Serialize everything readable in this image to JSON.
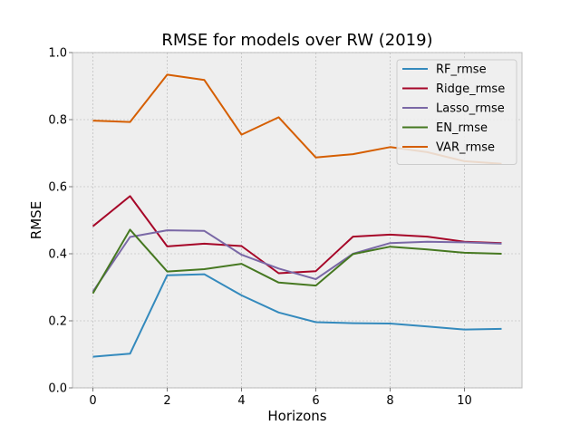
{
  "chart_data": {
    "type": "line",
    "title": "RMSE for models over RW (2019)",
    "xlabel": "Horizons",
    "ylabel": "RMSE",
    "x": [
      0,
      1,
      2,
      3,
      4,
      5,
      6,
      7,
      8,
      9,
      10,
      11
    ],
    "xlim": [
      -0.55,
      11.55
    ],
    "ylim": [
      0.0,
      1.0
    ],
    "xticks": [
      0,
      2,
      4,
      6,
      8,
      10
    ],
    "yticks": [
      0.0,
      0.2,
      0.4,
      0.6,
      0.8,
      1.0
    ],
    "xtick_labels": [
      "0",
      "2",
      "4",
      "6",
      "8",
      "10"
    ],
    "ytick_labels": [
      "0.0",
      "0.2",
      "0.4",
      "0.6",
      "0.8",
      "1.0"
    ],
    "grid": true,
    "legend_position": "top-right",
    "series": [
      {
        "name": "RF_rmse",
        "color": "#348ABD",
        "values": [
          0.093,
          0.102,
          0.336,
          0.339,
          0.276,
          0.225,
          0.196,
          0.193,
          0.192,
          0.183,
          0.174,
          0.176
        ]
      },
      {
        "name": "Ridge_rmse",
        "color": "#A60628",
        "values": [
          0.482,
          0.572,
          0.422,
          0.43,
          0.423,
          0.342,
          0.348,
          0.451,
          0.457,
          0.451,
          0.436,
          0.432
        ]
      },
      {
        "name": "Lasso_rmse",
        "color": "#7A68A6",
        "values": [
          0.287,
          0.45,
          0.47,
          0.468,
          0.397,
          0.356,
          0.324,
          0.4,
          0.432,
          0.436,
          0.434,
          0.43
        ]
      },
      {
        "name": "EN_rmse",
        "color": "#467821",
        "values": [
          0.282,
          0.472,
          0.347,
          0.354,
          0.37,
          0.314,
          0.305,
          0.399,
          0.421,
          0.413,
          0.403,
          0.4
        ]
      },
      {
        "name": "VAR_rmse",
        "color": "#D55E00",
        "values": [
          0.797,
          0.793,
          0.934,
          0.918,
          0.755,
          0.807,
          0.687,
          0.697,
          0.718,
          0.703,
          0.676,
          0.668
        ]
      }
    ]
  }
}
